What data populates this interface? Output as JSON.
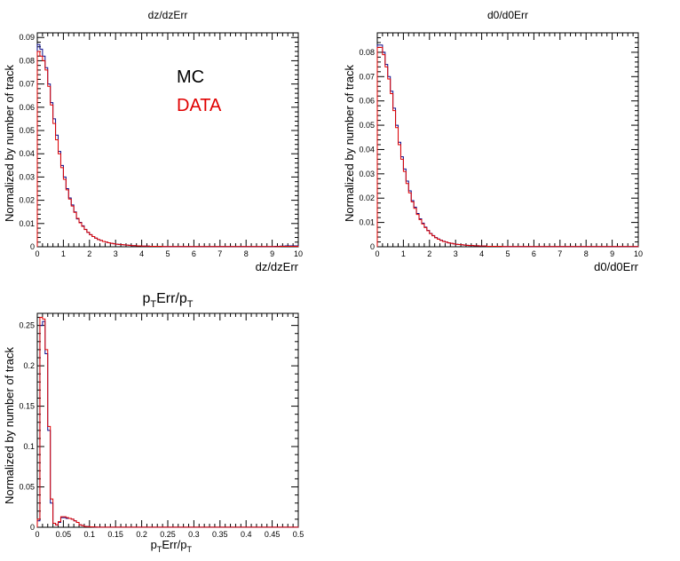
{
  "legend": {
    "mc_label": "MC",
    "data_label": "DATA"
  },
  "colors": {
    "mc": "#0a0a8a",
    "data": "#e00000",
    "axis": "#000000",
    "frame": "#000000"
  },
  "chart_data": [
    {
      "type": "line",
      "style": "histogram-step",
      "title": "dz/dzErr",
      "xlabel": "dz/dzErr",
      "ylabel": "Normalized by number of track",
      "xlim": [
        0,
        10
      ],
      "ylim": [
        0,
        0.092
      ],
      "x_ticks": [
        "0",
        "1",
        "2",
        "3",
        "4",
        "5",
        "6",
        "7",
        "8",
        "9",
        "10"
      ],
      "y_ticks": [
        "0",
        "0.01",
        "0.02",
        "0.03",
        "0.04",
        "0.05",
        "0.06",
        "0.07",
        "0.08",
        "0.09"
      ],
      "bin_width": 0.1,
      "legend_position": "upper-middle",
      "series": [
        {
          "name": "MC",
          "values": [
            0.087,
            0.085,
            0.082,
            0.077,
            0.07,
            0.062,
            0.055,
            0.048,
            0.041,
            0.035,
            0.03,
            0.025,
            0.021,
            0.018,
            0.015,
            0.012,
            0.0105,
            0.009,
            0.0075,
            0.0062,
            0.0052,
            0.0044,
            0.0037,
            0.0031,
            0.0027,
            0.0023,
            0.002,
            0.0017,
            0.0015,
            0.0013,
            0.0011,
            0.001,
            0.0009,
            0.0008,
            0.0007,
            0.0006,
            0.0005,
            0.0005,
            0.0004,
            0.0004,
            0.0003,
            0.0003,
            0.0003,
            0.0002,
            0.0002,
            0.0002,
            0.0002,
            0.0002,
            0.0001,
            0.0001,
            0.0001,
            0.0001,
            0.0001,
            0.0001,
            0.0001,
            0.0001,
            0.0001,
            0.0001,
            0.0001,
            0.0001,
            0.0001,
            0.0001,
            0.0001,
            0.0001,
            0.0001,
            0.0001,
            0.0001,
            0.0001,
            0.0001,
            0.0001,
            0.0001,
            0.0001,
            0.0001,
            0.0001,
            0.0001,
            0.0001,
            0.0001,
            0.0001,
            0.0001,
            0.0001,
            0.0001,
            0.0001,
            0.0001,
            0.0001,
            0.0001,
            0.0001,
            0.0001,
            0.0001,
            0.0001,
            0.0001,
            0.0001,
            0.0002,
            0.0002,
            0.0003,
            0.0003,
            0.0004,
            0.0004,
            0.0004,
            0.0004,
            0.0004
          ]
        },
        {
          "name": "DATA",
          "values": [
            0.084,
            0.082,
            0.08,
            0.076,
            0.069,
            0.061,
            0.053,
            0.046,
            0.04,
            0.034,
            0.029,
            0.0245,
            0.0205,
            0.0175,
            0.0148,
            0.0122,
            0.0103,
            0.0088,
            0.0074,
            0.0062,
            0.0052,
            0.0044,
            0.0037,
            0.0031,
            0.0027,
            0.0023,
            0.002,
            0.0017,
            0.0015,
            0.0013,
            0.0011,
            0.001,
            0.0009,
            0.0008,
            0.0007,
            0.0006,
            0.0005,
            0.0005,
            0.0004,
            0.0004,
            0.0003,
            0.0003,
            0.0003,
            0.0002,
            0.0002,
            0.0002,
            0.0002,
            0.0002,
            0.0001,
            0.0001,
            0.0001,
            0.0001,
            0.0001,
            0.0001,
            0.0001,
            0.0001,
            0.0001,
            0.0001,
            0.0001,
            0.0001,
            0.0001,
            0.0001,
            0.0001,
            0.0001,
            0.0001,
            0.0001,
            0.0001,
            0.0001,
            0.0001,
            0.0001,
            0.0001,
            0.0001,
            0.0001,
            0.0001,
            0.0001,
            0.0001,
            0.0001,
            0.0001,
            0.0001,
            0.0001,
            0.0001,
            0.0001,
            0.0001,
            0.0001,
            0.0001,
            0.0001,
            0.0001,
            0.0001,
            0.0001,
            0.0001,
            0.0001,
            0.0001,
            0.0001,
            0.0002,
            0.0002,
            0.0002,
            0.0002,
            0.0002,
            0.0002,
            0.0002
          ]
        }
      ]
    },
    {
      "type": "line",
      "style": "histogram-step",
      "title": "d0/d0Err",
      "xlabel": "d0/d0Err",
      "ylabel": "Normalized by number of track",
      "xlim": [
        0,
        10
      ],
      "ylim": [
        0,
        0.088
      ],
      "x_ticks": [
        "0",
        "1",
        "2",
        "3",
        "4",
        "5",
        "6",
        "7",
        "8",
        "9",
        "10"
      ],
      "y_ticks": [
        "0",
        "0.01",
        "0.02",
        "0.03",
        "0.04",
        "0.05",
        "0.06",
        "0.07",
        "0.08"
      ],
      "bin_width": 0.1,
      "series": [
        {
          "name": "MC",
          "values": [
            0.083,
            0.083,
            0.08,
            0.075,
            0.07,
            0.064,
            0.057,
            0.05,
            0.043,
            0.037,
            0.032,
            0.027,
            0.023,
            0.019,
            0.0163,
            0.0137,
            0.0115,
            0.0097,
            0.0081,
            0.0067,
            0.0055,
            0.0046,
            0.0038,
            0.0032,
            0.0027,
            0.0023,
            0.0019,
            0.0016,
            0.0014,
            0.0012,
            0.001,
            0.0009,
            0.0008,
            0.0007,
            0.0006,
            0.0005,
            0.0005,
            0.0004,
            0.0004,
            0.0003,
            0.0003,
            0.0003,
            0.0002,
            0.0002,
            0.0002,
            0.0002,
            0.0002,
            0.0002,
            0.0001,
            0.0001,
            0.0001,
            0.0001,
            0.0001,
            0.0001,
            0.0001,
            0.0001,
            0.0001,
            0.0001,
            0.0001,
            0.0001,
            0.0001,
            0.0001,
            0.0001,
            0.0001,
            0.0001,
            0.0001,
            0.0001,
            0.0001,
            0.0001,
            0.0001,
            0.0001,
            0.0001,
            0.0001,
            0.0001,
            0.0001,
            0.0001,
            0.0001,
            0.0001,
            0.0001,
            0.0001,
            0.0001,
            0.0001,
            0.0001,
            0.0001,
            0.0001,
            0.0001,
            0.0001,
            0.0001,
            0.0001,
            0.0001,
            0.0001,
            0.0001,
            0.0001,
            0.0001,
            0.0001,
            0.0001,
            0.0001,
            0.0001,
            0.0001,
            0.0001
          ]
        },
        {
          "name": "DATA",
          "values": [
            0.082,
            0.082,
            0.079,
            0.074,
            0.069,
            0.063,
            0.056,
            0.049,
            0.042,
            0.036,
            0.031,
            0.026,
            0.0222,
            0.0185,
            0.0158,
            0.0133,
            0.0112,
            0.0094,
            0.0079,
            0.0066,
            0.0054,
            0.0045,
            0.0037,
            0.0031,
            0.0026,
            0.0022,
            0.0019,
            0.0016,
            0.0014,
            0.0012,
            0.001,
            0.0009,
            0.0008,
            0.0007,
            0.0006,
            0.0005,
            0.0005,
            0.0004,
            0.0004,
            0.0003,
            0.0003,
            0.0003,
            0.0002,
            0.0002,
            0.0002,
            0.0002,
            0.0002,
            0.0002,
            0.0001,
            0.0001,
            0.0001,
            0.0001,
            0.0001,
            0.0001,
            0.0001,
            0.0001,
            0.0001,
            0.0001,
            0.0001,
            0.0001,
            0.0001,
            0.0001,
            0.0001,
            0.0001,
            0.0001,
            0.0001,
            0.0001,
            0.0001,
            0.0001,
            0.0001,
            0.0001,
            0.0001,
            0.0001,
            0.0001,
            0.0001,
            0.0001,
            0.0001,
            0.0001,
            0.0001,
            0.0001,
            0.0001,
            0.0001,
            0.0001,
            0.0001,
            0.0001,
            0.0001,
            0.0001,
            0.0001,
            0.0001,
            0.0001,
            0.0001,
            0.0001,
            0.0001,
            0.0001,
            0.0001,
            0.0001,
            0.0001,
            0.0001,
            0.0001,
            0.0001
          ]
        }
      ]
    },
    {
      "type": "line",
      "style": "histogram-step",
      "title": "pTErr/pT",
      "xlabel": "pTErr/pT",
      "ylabel": "Normalized by number of track",
      "xlim": [
        0,
        0.5
      ],
      "ylim": [
        0,
        0.265
      ],
      "x_ticks": [
        "0",
        "0.05",
        "0.1",
        "0.15",
        "0.2",
        "0.25",
        "0.3",
        "0.35",
        "0.4",
        "0.45",
        "0.5"
      ],
      "y_ticks": [
        "0",
        "0.05",
        "0.1",
        "0.15",
        "0.2",
        "0.25"
      ],
      "bin_width": 0.005,
      "series": [
        {
          "name": "MC",
          "values": [
            0.008,
            0.25,
            0.255,
            0.215,
            0.12,
            0.03,
            0.005,
            0.003,
            0.006,
            0.012,
            0.012,
            0.011,
            0.011,
            0.01,
            0.008,
            0.006,
            0.003,
            0.002,
            0.001,
            0.0008,
            0.0005,
            0.0004,
            0.0003,
            0.0002,
            0.0002,
            0.0002,
            0.0002,
            0.0002,
            0.0002,
            0.0002,
            0.0002,
            0.0002,
            0.0002,
            0.0002,
            0.0002,
            0.0002,
            0.0002,
            0.0002,
            0.0002,
            0.0002,
            0.0002,
            0.0002,
            0.0002,
            0.0002,
            0.0002,
            0.0002,
            0.0002,
            0.0002,
            0.0002,
            0.0002,
            0.0002,
            0.0002,
            0.0002,
            0.0002,
            0.0002,
            0.0002,
            0.0002,
            0.0002,
            0.0002,
            0.0002,
            0.0002,
            0.0002,
            0.0002,
            0.0002,
            0.0002,
            0.0002,
            0.0002,
            0.0002,
            0.0002,
            0.0002,
            0.0001,
            0.0001,
            0.0001,
            0.0001,
            0.0001,
            0.0001,
            0.0001,
            0.0001,
            0.0001,
            0.0001,
            0.0001,
            0.0001,
            0.0001,
            0.0001,
            0.0001,
            0.0001,
            0.0001,
            0.0001,
            0.0001,
            0.0001,
            0.0001,
            0.0001,
            0.0001,
            0.0001,
            0.0001,
            0.0001,
            0.0001,
            0.0001,
            0.0001,
            0.0001
          ]
        },
        {
          "name": "DATA",
          "values": [
            0.01,
            0.26,
            0.258,
            0.22,
            0.125,
            0.035,
            0.005,
            0.003,
            0.007,
            0.013,
            0.013,
            0.012,
            0.011,
            0.01,
            0.008,
            0.006,
            0.003,
            0.002,
            0.001,
            0.0008,
            0.0005,
            0.0004,
            0.0003,
            0.0002,
            0.0002,
            0.0002,
            0.0002,
            0.0002,
            0.0002,
            0.0002,
            0.0002,
            0.0002,
            0.0002,
            0.0002,
            0.0002,
            0.0002,
            0.0002,
            0.0002,
            0.0002,
            0.0002,
            0.0002,
            0.0002,
            0.0002,
            0.0002,
            0.0002,
            0.0002,
            0.0002,
            0.0002,
            0.0002,
            0.0002,
            0.0002,
            0.0002,
            0.0002,
            0.0002,
            0.0002,
            0.0002,
            0.0002,
            0.0002,
            0.0002,
            0.0002,
            0.0002,
            0.0002,
            0.0002,
            0.0002,
            0.0002,
            0.0002,
            0.0002,
            0.0002,
            0.0002,
            0.0002,
            0.0001,
            0.0001,
            0.0001,
            0.0001,
            0.0001,
            0.0001,
            0.0001,
            0.0001,
            0.0001,
            0.0001,
            0.0001,
            0.0001,
            0.0001,
            0.0001,
            0.0001,
            0.0001,
            0.0001,
            0.0001,
            0.0001,
            0.0001,
            0.0001,
            0.0001,
            0.0001,
            0.0001,
            0.0001,
            0.0001,
            0.0001,
            0.0001,
            0.0001,
            0.0001
          ]
        }
      ]
    }
  ]
}
